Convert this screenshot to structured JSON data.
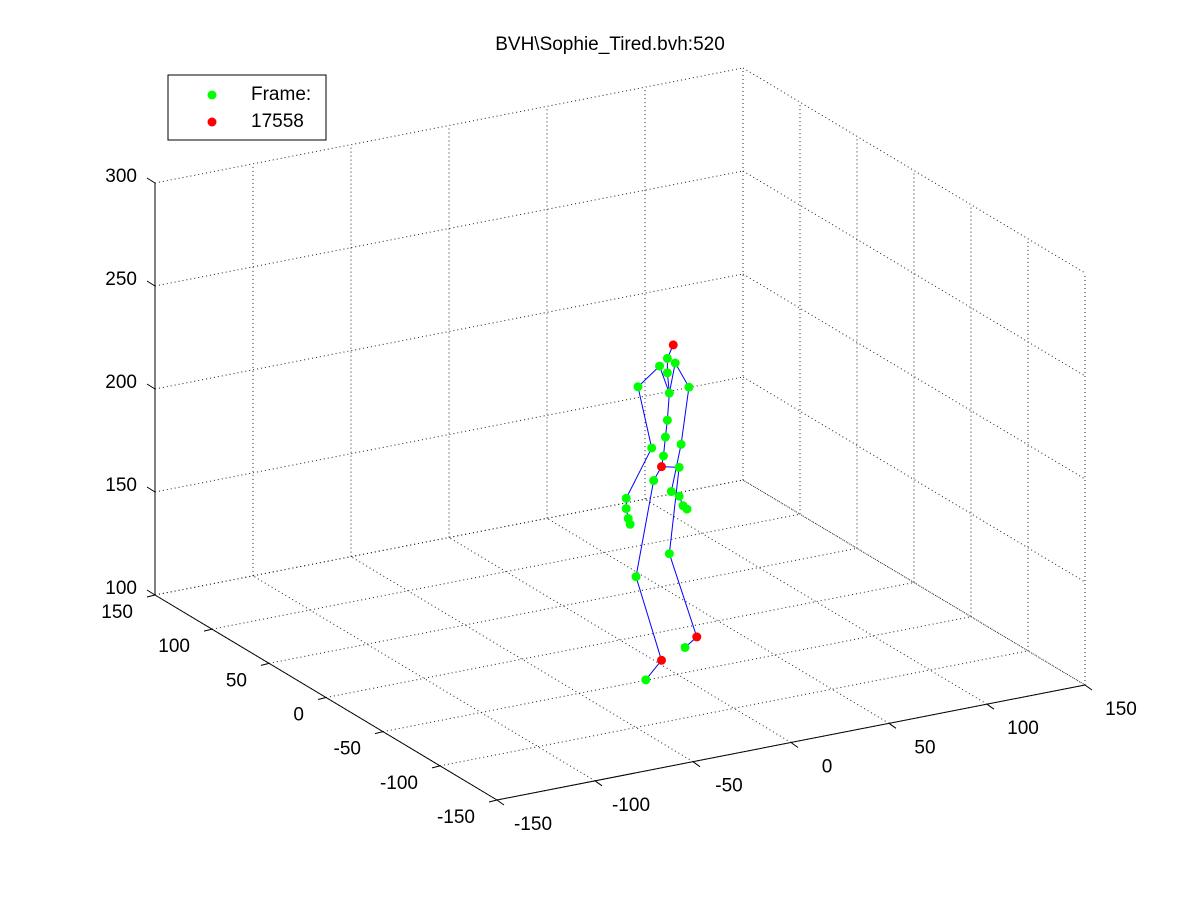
{
  "chart_data": {
    "type": "scatter3d",
    "title": "BVH\\Sophie_Tired.bvh:520",
    "xlim": [
      -150,
      150
    ],
    "ylim": [
      -150,
      150
    ],
    "zlim": [
      100,
      300
    ],
    "xticks": [
      -150,
      -100,
      -50,
      0,
      50,
      100,
      150
    ],
    "yticks": [
      -150,
      -100,
      -50,
      0,
      50,
      100,
      150
    ],
    "zticks": [
      100,
      150,
      200,
      250,
      300
    ],
    "grid": true,
    "legend": "northwest",
    "series": [
      {
        "name": "Frame:",
        "color": "#00ff00",
        "x": [
          -6,
          -2,
          2,
          -2,
          -17,
          9,
          -1,
          -2,
          -3,
          -10,
          5,
          -4,
          4,
          -9,
          -23,
          -23,
          -22,
          -21,
          0,
          4,
          6,
          8,
          -1,
          -18,
          -13,
          7
        ],
        "y": [
          -45,
          -45,
          -45,
          -45,
          -45,
          -45,
          -45,
          -45,
          -45,
          -45,
          -45,
          -45,
          -45,
          -45,
          -45,
          -45,
          -45,
          -45,
          -45,
          -45,
          -45,
          -45,
          -45,
          -45,
          -45,
          -45
        ],
        "z": [
          249,
          252,
          249,
          245,
          241,
          236,
          235,
          222,
          214,
          210,
          209,
          205,
          198,
          194,
          188,
          183,
          178,
          175,
          187,
          184,
          179,
          177,
          157,
          149,
          98,
          110
        ]
      },
      {
        "name": "17558",
        "color": "#ff0000",
        "x": [
          1,
          -5,
          -5,
          13
        ],
        "y": [
          -45,
          -45,
          -45,
          -45
        ],
        "z": [
          258,
          200,
          106,
          114
        ]
      }
    ],
    "bone_color": "#0000ff",
    "bones": [
      {
        "x": [
          -5,
          -9,
          -18,
          -5,
          -13
        ],
        "y": [
          -45,
          -45,
          -45,
          -45,
          -45
        ],
        "z": [
          200,
          194,
          149,
          106,
          98
        ]
      },
      {
        "x": [
          4,
          -1,
          13,
          7
        ],
        "y": [
          -45,
          -45,
          -45,
          -45
        ],
        "z": [
          198,
          157,
          114,
          110
        ]
      },
      {
        "x": [
          -5,
          -4,
          -3,
          -2,
          -1,
          -2,
          -2,
          1
        ],
        "y": [
          -45,
          -45,
          -45,
          -45,
          -45,
          -45,
          -45,
          -45
        ],
        "z": [
          200,
          205,
          214,
          222,
          235,
          245,
          252,
          258
        ]
      },
      {
        "x": [
          -1,
          -6,
          -17,
          -10,
          -23,
          -23,
          -22,
          -21
        ],
        "y": [
          -45,
          -45,
          -45,
          -45,
          -45,
          -45,
          -45,
          -45
        ],
        "z": [
          235,
          249,
          241,
          210,
          188,
          183,
          178,
          175
        ]
      },
      {
        "x": [
          -1,
          2,
          9,
          5,
          0,
          4,
          6,
          8
        ],
        "y": [
          -45,
          -45,
          -45,
          -45,
          -45,
          -45,
          -45,
          -45
        ],
        "z": [
          235,
          249,
          236,
          209,
          187,
          184,
          179,
          177
        ]
      },
      {
        "x": [
          -5,
          4
        ],
        "y": [
          -45,
          -45
        ],
        "z": [
          200,
          198
        ]
      }
    ]
  }
}
